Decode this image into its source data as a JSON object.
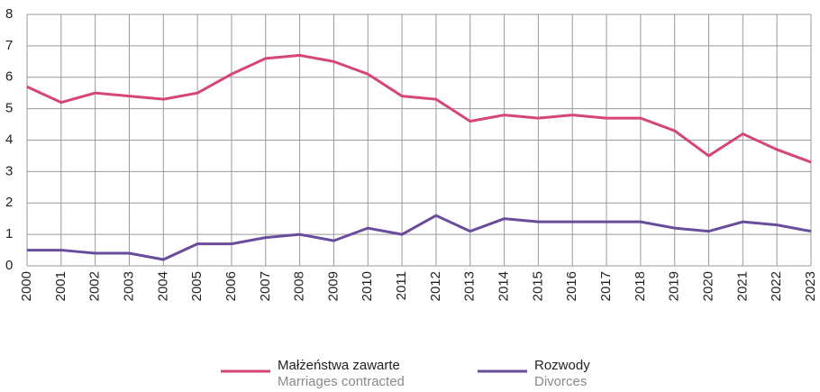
{
  "chart_data": {
    "type": "line",
    "x": [
      2000,
      2001,
      2002,
      2003,
      2004,
      2005,
      2006,
      2007,
      2008,
      2009,
      2010,
      2011,
      2012,
      2013,
      2014,
      2015,
      2016,
      2017,
      2018,
      2019,
      2020,
      2021,
      2022,
      2023
    ],
    "xlim": [
      2000,
      2023
    ],
    "series": [
      {
        "name": "Małżeństwa zawarte",
        "name_en": "Marriages contracted",
        "color": "#d6457a",
        "values": [
          5.7,
          5.2,
          5.5,
          5.4,
          5.3,
          5.5,
          6.1,
          6.6,
          6.7,
          6.5,
          6.1,
          5.4,
          5.3,
          4.6,
          4.8,
          4.7,
          4.8,
          4.7,
          4.7,
          4.3,
          3.5,
          4.2,
          3.7,
          3.3
        ]
      },
      {
        "name": "Rozwody",
        "name_en": "Divorces",
        "color": "#6a4c9c",
        "values": [
          0.5,
          0.5,
          0.4,
          0.4,
          0.2,
          0.7,
          0.7,
          0.9,
          1.0,
          0.8,
          1.2,
          1.0,
          1.6,
          1.1,
          1.5,
          1.4,
          1.4,
          1.4,
          1.4,
          1.2,
          1.1,
          1.4,
          1.3,
          1.1
        ]
      }
    ],
    "ylim": [
      0,
      8
    ],
    "yticks": [
      0,
      1,
      2,
      3,
      4,
      5,
      6,
      7,
      8
    ],
    "grid": true
  }
}
